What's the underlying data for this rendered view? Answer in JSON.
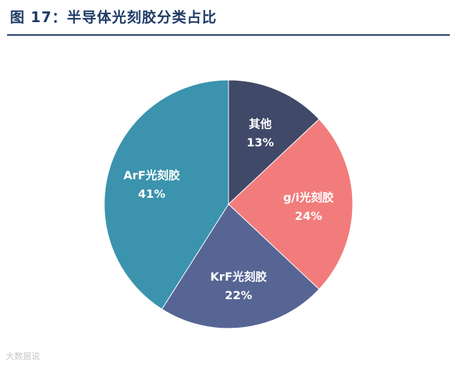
{
  "figure": {
    "title": "图 17：半导体光刻胶分类占比",
    "watermark": "大数据说"
  },
  "chart_data": {
    "type": "pie",
    "title": "图 17：半导体光刻胶分类占比",
    "slices": [
      {
        "label": "其他",
        "value": 13,
        "value_label": "13%",
        "color": "#414968"
      },
      {
        "label": "g/i光刻胶",
        "value": 24,
        "value_label": "24%",
        "color": "#f27c7c"
      },
      {
        "label": "KrF光刻胶",
        "value": 22,
        "value_label": "22%",
        "color": "#566594"
      },
      {
        "label": "ArF光刻胶",
        "value": 41,
        "value_label": "41%",
        "color": "#3b93ad"
      }
    ],
    "start": "12 o'clock",
    "direction": "clockwise",
    "legend": "none"
  }
}
